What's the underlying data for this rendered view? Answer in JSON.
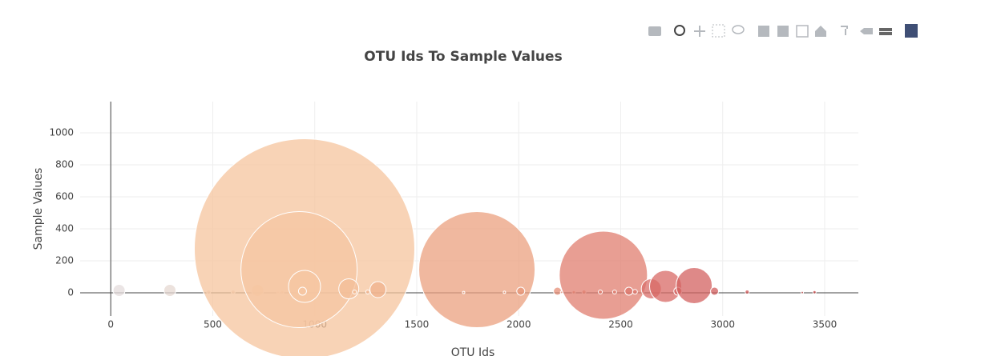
{
  "chart_data": {
    "type": "bubble",
    "title": "OTU Ids To Sample Values",
    "x_label": "OTU Ids",
    "y_label": "Sample Values",
    "x": [
      41,
      290,
      480,
      600,
      720,
      820,
      840,
      920,
      950,
      923,
      950,
      940,
      1167,
      1195,
      1260,
      1310,
      1795,
      1730,
      1930,
      2010,
      2190,
      2210,
      2270,
      2320,
      2415,
      2400,
      2470,
      2540,
      2570,
      2650,
      2720,
      2780,
      2860,
      2960,
      3120,
      3390,
      3450
    ],
    "values": [
      15,
      15,
      5,
      5,
      15,
      3,
      4,
      5,
      275,
      145,
      40,
      10,
      25,
      5,
      5,
      20,
      145,
      2,
      3,
      10,
      10,
      3,
      4,
      5,
      110,
      5,
      5,
      10,
      6,
      25,
      40,
      10,
      45,
      10,
      5,
      2,
      4
    ],
    "colors": [
      "#e4dcdc",
      "#e6d8d2",
      "#ead4c8",
      "#eed2c2",
      "#f0cfb8",
      "#f2cbb0",
      "#f2cbb0",
      "#f5c6a2",
      "#f5c49e",
      "#f5c6a2",
      "#f5c6a2",
      "#f5c6a2",
      "#f3bd98",
      "#f3bd98",
      "#f1b690",
      "#f0b28c",
      "#eba07f",
      "#eca482",
      "#e99a7b",
      "#e89778",
      "#e58e75",
      "#e38a73",
      "#e38a73",
      "#e38a73",
      "#e07d6f",
      "#e07d6f",
      "#e07d6f",
      "#dd776c",
      "#dd776c",
      "#da6e68",
      "#d86a66",
      "#d66664",
      "#d36160",
      "#d05c5c",
      "#cc5252",
      "#c84646",
      "#c64242"
    ],
    "xlim": [
      -150,
      3665
    ],
    "ylim": [
      -145,
      1195
    ],
    "xticks": [
      0,
      500,
      1000,
      1500,
      2000,
      2500,
      3000,
      3500
    ],
    "yticks": [
      0,
      200,
      400,
      600,
      800,
      1000
    ],
    "grid": true
  }
}
